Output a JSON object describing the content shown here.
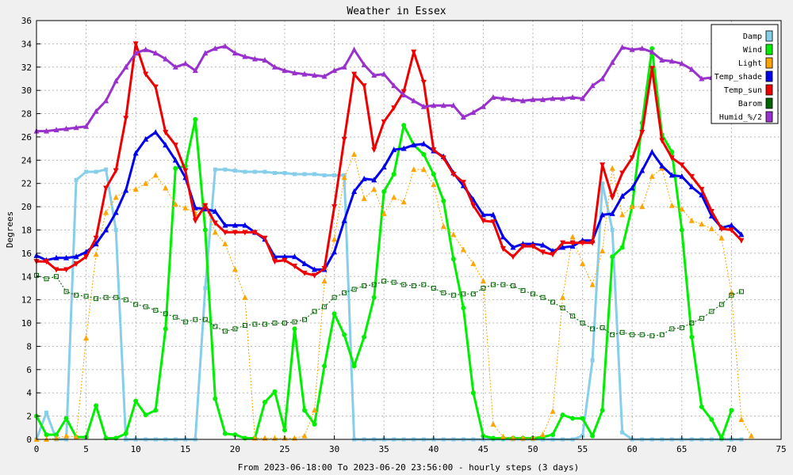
{
  "chart_data": {
    "type": "line",
    "title": "Weather in Essex",
    "xlabel": "From 2023-06-18:00 To 2023-06-20 23:56:00 - hourly steps (3 days)",
    "ylabel": "Degrees",
    "xlim": [
      0,
      75
    ],
    "ylim": [
      0,
      36
    ],
    "x_ticks": [
      0,
      5,
      10,
      15,
      20,
      25,
      30,
      35,
      40,
      45,
      50,
      55,
      60,
      65,
      70,
      75
    ],
    "y_ticks": [
      0,
      2,
      4,
      6,
      8,
      10,
      12,
      14,
      16,
      18,
      20,
      22,
      24,
      26,
      28,
      30,
      32,
      34,
      36
    ],
    "grid": true,
    "legend_position": "top-right",
    "series": [
      {
        "name": "Damp",
        "color": "#87ceeb",
        "marker": "square",
        "dash": "",
        "values": [
          0,
          2.3,
          0,
          0,
          22.3,
          23,
          23,
          23.2,
          18,
          0,
          0,
          0,
          0,
          0,
          0,
          0,
          0,
          13,
          23.2,
          23.2,
          23.1,
          23,
          23,
          23,
          22.9,
          22.9,
          22.8,
          22.8,
          22.8,
          22.7,
          22.7,
          22.7,
          0,
          0,
          0,
          0,
          0,
          0,
          0,
          0,
          0,
          0,
          0,
          0,
          0,
          0,
          0,
          0,
          0,
          0,
          0,
          0,
          0,
          0,
          0,
          0.3,
          6.8,
          22,
          18,
          0.6,
          0,
          0,
          0,
          0,
          0,
          0,
          0,
          0,
          0,
          0,
          0,
          0
        ]
      },
      {
        "name": "Wind",
        "color": "#00ee00",
        "marker": "circle",
        "dash": "",
        "values": [
          2,
          0.4,
          0.4,
          1.8,
          0.2,
          0.2,
          2.9,
          0.1,
          0.1,
          0.5,
          3.3,
          2.1,
          2.5,
          9.5,
          23.3,
          23.5,
          27.5,
          18,
          3.5,
          0.5,
          0.4,
          0.1,
          0.1,
          3.2,
          4.1,
          0.8,
          9.5,
          2.5,
          1.3,
          6.3,
          10.8,
          9,
          6.3,
          8.8,
          12.2,
          21.3,
          22.8,
          27,
          25.3,
          24.5,
          22.8,
          20.5,
          15.5,
          11.3,
          4,
          0.3,
          0.1,
          0.1,
          0.1,
          0.1,
          0.1,
          0.2,
          0.4,
          2.1,
          1.8,
          1.8,
          0.3,
          2.5,
          15.7,
          16.5,
          20,
          27.2,
          33.6,
          26.2,
          24.7,
          18,
          8.8,
          2.8,
          1.7,
          0.1,
          2.5
        ]
      },
      {
        "name": "Light",
        "color": "#ffa500",
        "marker": "triangle-up",
        "dash": "2,2",
        "values": [
          0,
          0,
          0.1,
          0.3,
          0.2,
          8.7,
          15.9,
          19.5,
          20.8,
          21.4,
          21.5,
          22,
          22.7,
          21.6,
          20.2,
          19.9,
          19.4,
          20.1,
          17.8,
          16.8,
          14.6,
          12.2,
          0.1,
          0.1,
          0.1,
          0.1,
          0.1,
          0.3,
          2.5,
          13.6,
          17.2,
          22.5,
          24.5,
          20.7,
          21.5,
          19.4,
          20.8,
          20.4,
          23.2,
          23.2,
          21.9,
          18.3,
          17.6,
          16.3,
          15.1,
          13.6,
          1.3,
          0.2,
          0.1,
          0.1,
          0.1,
          0.4,
          2.4,
          12.2,
          17.4,
          15.1,
          13.3,
          16.2,
          23.3,
          19.3,
          20,
          20,
          22.6,
          23.3,
          20.1,
          19.8,
          18.8,
          18.5,
          18.1,
          17.3,
          12.6,
          1.7,
          0.3
        ]
      },
      {
        "name": "Temp_shade",
        "color": "#0000ee",
        "marker": "triangle-up",
        "dash": "",
        "values": [
          15.8,
          15.4,
          15.6,
          15.6,
          15.7,
          16.1,
          16.8,
          18,
          19.5,
          21.4,
          24.6,
          25.8,
          26.4,
          25.3,
          24,
          22.5,
          19.9,
          19.8,
          19.6,
          18.4,
          18.4,
          18.4,
          17.8,
          17.2,
          15.7,
          15.7,
          15.7,
          15.1,
          14.6,
          14.6,
          16.1,
          18.8,
          21.3,
          22.4,
          22.3,
          23.4,
          24.9,
          25,
          25.3,
          25.4,
          24.8,
          24.3,
          22.9,
          21.8,
          20.6,
          19.3,
          19.3,
          17.4,
          16.5,
          16.8,
          16.8,
          16.7,
          16.2,
          16.5,
          16.6,
          17.1,
          17.1,
          19.3,
          19.4,
          20.9,
          21.6,
          23.1,
          24.7,
          23.5,
          22.7,
          22.6,
          21.7,
          21,
          19.2,
          18.2,
          18.4,
          17.6
        ]
      },
      {
        "name": "Temp_sun",
        "color": "#ee0000",
        "marker": "triangle-down",
        "dash": "",
        "values": [
          15.3,
          15.3,
          14.6,
          14.6,
          15.1,
          15.7,
          17.3,
          21.6,
          23.1,
          27.6,
          34,
          31.4,
          30.3,
          26.4,
          25.3,
          23.1,
          18.8,
          20.1,
          18.6,
          17.8,
          17.8,
          17.8,
          17.8,
          17.3,
          15.3,
          15.4,
          14.9,
          14.3,
          14.1,
          14.7,
          20,
          25.8,
          31.4,
          30.4,
          24.9,
          27.3,
          28.5,
          29.9,
          33.3,
          30.7,
          24.9,
          24.2,
          22.8,
          22.1,
          20.1,
          18.8,
          18.7,
          16.4,
          15.7,
          16.6,
          16.6,
          16.1,
          15.9,
          16.9,
          16.9,
          16.9,
          16.9,
          23.6,
          20.8,
          22.9,
          24.2,
          26.4,
          31.9,
          25.7,
          24.2,
          23.6,
          22.6,
          21.5,
          19.6,
          18.1,
          18,
          17.1
        ]
      },
      {
        "name": "Barom",
        "color": "#006400",
        "marker": "square-open",
        "dash": "2,2",
        "values": [
          14.1,
          13.8,
          14,
          12.7,
          12.4,
          12.3,
          12.1,
          12.2,
          12.2,
          12,
          11.6,
          11.4,
          11.1,
          10.8,
          10.5,
          10.1,
          10.3,
          10.3,
          9.7,
          9.3,
          9.5,
          9.8,
          9.9,
          9.9,
          10,
          10,
          10.1,
          10.3,
          11,
          11.4,
          12.2,
          12.6,
          12.9,
          13.2,
          13.3,
          13.6,
          13.5,
          13.3,
          13.2,
          13.3,
          13,
          12.6,
          12.4,
          12.5,
          12.5,
          13,
          13.3,
          13.3,
          13.2,
          12.8,
          12.5,
          12.2,
          11.8,
          11.3,
          10.6,
          10,
          9.5,
          9.6,
          9,
          9.2,
          9,
          9,
          8.9,
          9,
          9.5,
          9.6,
          10,
          10.4,
          11,
          11.6,
          12.4,
          12.7
        ]
      },
      {
        "name": "Humid_%/2",
        "color": "#9932cc",
        "marker": "triangle-up",
        "dash": "",
        "values": [
          26.5,
          26.5,
          26.6,
          26.7,
          26.8,
          26.9,
          28.2,
          29.1,
          30.8,
          32,
          33.2,
          33.5,
          33.2,
          32.7,
          32,
          32.3,
          31.7,
          33.2,
          33.6,
          33.8,
          33.2,
          32.9,
          32.7,
          32.6,
          32,
          31.7,
          31.5,
          31.4,
          31.3,
          31.2,
          31.7,
          32,
          33.5,
          32.2,
          31.3,
          31.4,
          30.4,
          29.6,
          29.1,
          28.6,
          28.7,
          28.7,
          28.7,
          27.7,
          28.1,
          28.6,
          29.4,
          29.3,
          29.2,
          29.1,
          29.2,
          29.2,
          29.3,
          29.3,
          29.4,
          29.3,
          30.4,
          31,
          32.4,
          33.7,
          33.5,
          33.6,
          33.3,
          32.6,
          32.5,
          32.3,
          31.8,
          31,
          31.1
        ]
      }
    ]
  }
}
